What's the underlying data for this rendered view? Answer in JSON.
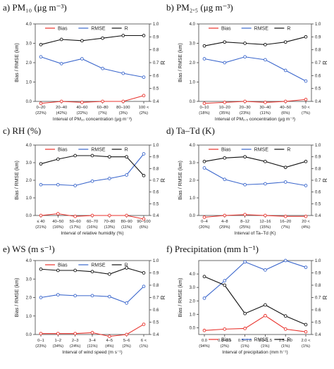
{
  "colors": {
    "bias": "#e8322c",
    "rmse": "#3a66cc",
    "r": "#111111"
  },
  "legend": {
    "bias": "Bias",
    "rmse": "RMSE",
    "r": "R"
  },
  "axis_labels": {
    "left": "Bias / RMSE (km)",
    "right": "R"
  },
  "chart_data": [
    {
      "type": "line",
      "title": "a) PM₁₀ (μg m⁻³)",
      "xlabel": "Interval of PM₁₀ concentration (μg m⁻³)",
      "categories": [
        "0–20",
        "20–40",
        "40–60",
        "60–80",
        "80–100",
        "100 <"
      ],
      "percents": [
        "(22%)",
        "(42%)",
        "(22%)",
        "(7%)",
        "(3%)",
        "(2%)"
      ],
      "ylim_left": [
        0,
        4
      ],
      "ylim_right": [
        0.4,
        1.0
      ],
      "yticks_left": [
        "0.0",
        "1.0",
        "2.0",
        "3.0",
        "4.0"
      ],
      "yticks_right": [
        "0.4",
        "0.5",
        "0.6",
        "0.7",
        "0.8",
        "0.9",
        "1.0"
      ],
      "series": [
        {
          "name": "Bias",
          "axis": "left",
          "values": [
            -0.1,
            0.0,
            -0.05,
            0.0,
            0.0,
            0.3
          ]
        },
        {
          "name": "RMSE",
          "axis": "left",
          "values": [
            2.3,
            1.95,
            2.2,
            1.7,
            1.45,
            1.25
          ]
        },
        {
          "name": "R",
          "axis": "right",
          "values": [
            0.84,
            0.88,
            0.87,
            0.89,
            0.91,
            0.91
          ]
        }
      ]
    },
    {
      "type": "line",
      "title": "b) PM₂.₅ (μg m⁻³)",
      "xlabel": "Interval of PM₂.₅ concentration (μg m⁻³)",
      "categories": [
        "0–10",
        "10–20",
        "20–30",
        "30–40",
        "40–50",
        "50 <"
      ],
      "percents": [
        "(18%)",
        "(35%)",
        "(23%)",
        "(11%)",
        "(6%)",
        "(7%)"
      ],
      "ylim_left": [
        0,
        4
      ],
      "ylim_right": [
        0.4,
        1.0
      ],
      "yticks_left": [
        "0.0",
        "1.0",
        "2.0",
        "3.0",
        "4.0"
      ],
      "yticks_right": [
        "0.4",
        "0.5",
        "0.6",
        "0.7",
        "0.8",
        "0.9",
        "1.0"
      ],
      "series": [
        {
          "name": "Bias",
          "axis": "left",
          "values": [
            -0.1,
            -0.05,
            0.0,
            -0.05,
            0.0,
            0.1
          ]
        },
        {
          "name": "RMSE",
          "axis": "left",
          "values": [
            2.2,
            2.0,
            2.3,
            2.15,
            1.6,
            1.05
          ]
        },
        {
          "name": "R",
          "axis": "right",
          "values": [
            0.83,
            0.86,
            0.85,
            0.84,
            0.86,
            0.9
          ]
        }
      ]
    },
    {
      "type": "line",
      "title": "c) RH (%)",
      "xlabel": "Interval of relative humidity (%)",
      "categories": [
        "≤ 40",
        "40–50",
        "50–60",
        "60–70",
        "70–80",
        "80–90",
        "90–100"
      ],
      "percents": [
        "(21%)",
        "(16%)",
        "(17%)",
        "(16%)",
        "(13%)",
        "(11%)",
        "(6%)"
      ],
      "ylim_left": [
        0,
        4
      ],
      "ylim_right": [
        0.4,
        1.0
      ],
      "yticks_left": [
        "0.0",
        "1.0",
        "2.0",
        "3.0",
        "4.0"
      ],
      "yticks_right": [
        "0.4",
        "0.5",
        "0.6",
        "0.7",
        "0.8",
        "0.9",
        "1.0"
      ],
      "series": [
        {
          "name": "Bias",
          "axis": "left",
          "values": [
            0.0,
            0.1,
            -0.05,
            0.0,
            0.0,
            0.0,
            -0.2
          ]
        },
        {
          "name": "RMSE",
          "axis": "left",
          "values": [
            1.75,
            1.75,
            1.7,
            1.95,
            2.1,
            2.3,
            3.5
          ]
        },
        {
          "name": "R",
          "axis": "right",
          "values": [
            0.84,
            0.88,
            0.91,
            0.91,
            0.9,
            0.9,
            0.74
          ]
        }
      ]
    },
    {
      "type": "line",
      "title": "d) Ta–Td (K)",
      "xlabel": "Interval of Ta–Td (K)",
      "categories": [
        "0–4",
        "4–8",
        "8–12",
        "12–16",
        "16–20",
        "20 <"
      ],
      "percents": [
        "(20%)",
        "(29%)",
        "(25%)",
        "(15%)",
        "(7%)",
        "(4%)"
      ],
      "ylim_left": [
        0,
        4
      ],
      "ylim_right": [
        0.4,
        1.0
      ],
      "yticks_left": [
        "0.0",
        "1.0",
        "2.0",
        "3.0",
        "4.0"
      ],
      "yticks_right": [
        "0.4",
        "0.5",
        "0.6",
        "0.7",
        "0.8",
        "0.9",
        "1.0"
      ],
      "series": [
        {
          "name": "Bias",
          "axis": "left",
          "values": [
            -0.1,
            0.0,
            0.05,
            0.0,
            -0.05,
            -0.05
          ]
        },
        {
          "name": "RMSE",
          "axis": "left",
          "values": [
            2.7,
            2.05,
            1.75,
            1.8,
            1.9,
            1.7
          ]
        },
        {
          "name": "R",
          "axis": "right",
          "values": [
            0.86,
            0.89,
            0.9,
            0.86,
            0.81,
            0.86
          ]
        }
      ]
    },
    {
      "type": "line",
      "title": "e) WS (m s⁻¹)",
      "xlabel": "Interval of wind speed (m s⁻¹)",
      "categories": [
        "0–1",
        "1–2",
        "2–3",
        "3–4",
        "4–5",
        "5–6",
        "6 <"
      ],
      "percents": [
        "(23%)",
        "(34%)",
        "(24%)",
        "(11%)",
        "(4%)",
        "(2%)",
        "(1%)"
      ],
      "ylim_left": [
        0,
        4
      ],
      "ylim_right": [
        0.4,
        1.0
      ],
      "yticks_left": [
        "0.0",
        "1.0",
        "2.0",
        "3.0",
        "4.0"
      ],
      "yticks_right": [
        "0.4",
        "0.5",
        "0.6",
        "0.7",
        "0.8",
        "0.9",
        "1.0"
      ],
      "series": [
        {
          "name": "Bias",
          "axis": "left",
          "values": [
            0.05,
            0.05,
            0.05,
            0.1,
            -0.1,
            0.0,
            0.55
          ]
        },
        {
          "name": "RMSE",
          "axis": "left",
          "values": [
            2.0,
            2.15,
            2.1,
            2.1,
            2.05,
            1.7,
            2.6
          ]
        },
        {
          "name": "R",
          "axis": "right",
          "values": [
            0.93,
            0.92,
            0.92,
            0.91,
            0.89,
            0.94,
            0.9
          ]
        }
      ]
    },
    {
      "type": "line",
      "title": "f) Precipitation (mm h⁻¹)",
      "xlabel": "Interval of precipitation (mm h⁻¹)",
      "categories": [
        "0.0",
        "0.0–0.5",
        "0.5–1.0",
        "1.0–1.5",
        "1.5–2.0",
        "2.0 <"
      ],
      "percents": [
        "(94%)",
        "(2%)",
        "(1%)",
        "(1%)",
        "(1%)",
        "(1%)"
      ],
      "ylim_left": [
        -0.5,
        5.0
      ],
      "ylim_right": [
        0.4,
        1.0
      ],
      "yticks_left": [
        "0.0",
        "1.0",
        "2.0",
        "3.0",
        "4.0"
      ],
      "yticks_right": [
        "0.4",
        "0.5",
        "0.6",
        "0.7",
        "0.8",
        "0.9",
        "1.0"
      ],
      "series": [
        {
          "name": "Bias",
          "axis": "left",
          "values": [
            -0.2,
            -0.1,
            -0.05,
            0.9,
            -0.1,
            -0.3
          ]
        },
        {
          "name": "RMSE",
          "axis": "left",
          "values": [
            2.2,
            3.5,
            4.9,
            4.3,
            5.0,
            4.5
          ]
        },
        {
          "name": "R",
          "axis": "right",
          "values": [
            0.87,
            0.8,
            0.57,
            0.64,
            0.55,
            0.48
          ]
        }
      ]
    }
  ]
}
